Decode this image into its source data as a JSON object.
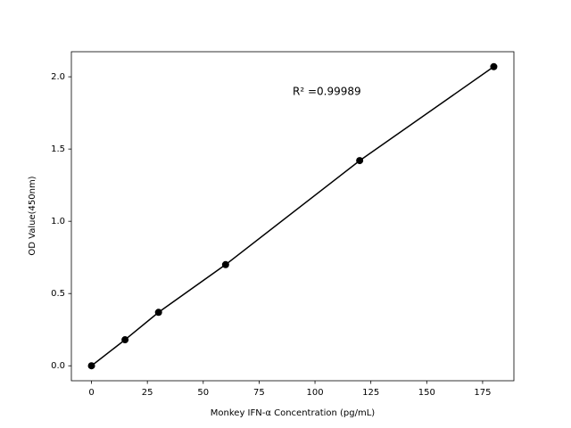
{
  "chart_data": {
    "type": "line",
    "xlabel": "Monkey IFN-α Concentration (pg/mL)",
    "ylabel": "OD Value(450nm)",
    "annotation": "R² =0.99989",
    "x": [
      0,
      15,
      30,
      60,
      120,
      180
    ],
    "series": [
      {
        "color": "#000000",
        "values": [
          0.0,
          0.18,
          0.37,
          0.7,
          1.42,
          2.07
        ]
      }
    ],
    "xlim": [
      -9,
      189
    ],
    "xticks": [
      0,
      25,
      50,
      75,
      100,
      125,
      150,
      175
    ],
    "ylim": [
      -0.1035,
      2.1735
    ],
    "yticks": [
      {
        "value": 0,
        "label": "0.0"
      },
      0.5,
      {
        "value": 1,
        "label": "1.0"
      },
      1.5,
      {
        "value": 2,
        "label": "2.0"
      }
    ],
    "grid": false
  }
}
